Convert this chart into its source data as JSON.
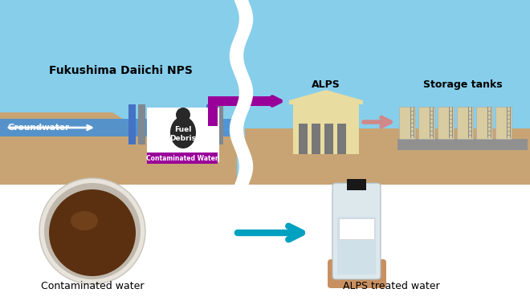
{
  "sky_color": "#87CEEB",
  "ground_color": "#C8A474",
  "water_blue": "#4A90D4",
  "wall_blue": "#4472C4",
  "wall_grey": "#808890",
  "pipe_magenta": "#990099",
  "arrow_pink": "#D08888",
  "arrow_teal": "#00A0C0",
  "alps_building": "#E8DCA0",
  "alps_door": "#787878",
  "tanks_body": "#D8CCA0",
  "tanks_platform": "#909090",
  "fuel_color": "#282828",
  "cont_bg": "#990099",
  "bowl_outer": "#E8E4DC",
  "liquid_dark": "#5A3010",
  "liquid_mid": "#7A4820",
  "bottle_body": "#DCE8EC",
  "bottle_cap": "#181818",
  "hand_color": "#C89060",
  "label_fukushima": "Fukushima Daiichi NPS",
  "label_alps": "ALPS",
  "label_storage": "Storage tanks",
  "label_groundwater": "Groundwater",
  "label_fuel": "Fuel\nDebris",
  "label_cont_water": "Contaminated Water",
  "label_cont_photo": "Contaminated water",
  "label_alps_treated": "ALPS treated water"
}
